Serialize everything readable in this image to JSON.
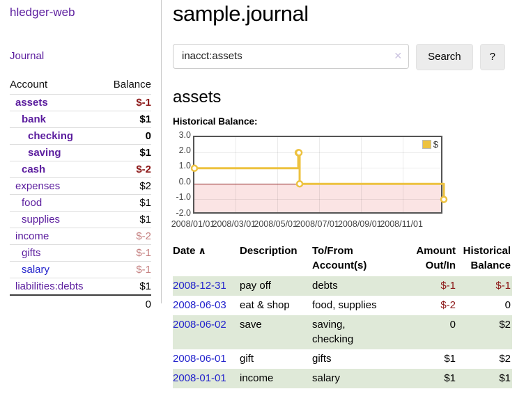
{
  "app": {
    "title": "hledger-web",
    "nav_journal_label": "Journal"
  },
  "sidebar": {
    "accounts_header": {
      "account": "Account",
      "balance": "Balance"
    },
    "accounts": [
      {
        "name": "assets",
        "indent": 1,
        "bold": true,
        "name_color": "purple",
        "balance": "$-1",
        "balance_color": "neg-strong",
        "balance_bold": true
      },
      {
        "name": "bank",
        "indent": 2,
        "bold": true,
        "name_color": "purple",
        "balance": "$1",
        "balance_color": "plain",
        "balance_bold": true
      },
      {
        "name": "checking",
        "indent": 3,
        "bold": true,
        "name_color": "purple",
        "balance": "0",
        "balance_color": "plain",
        "balance_bold": true
      },
      {
        "name": "saving",
        "indent": 3,
        "bold": true,
        "name_color": "purple",
        "balance": "$1",
        "balance_color": "plain",
        "balance_bold": true
      },
      {
        "name": "cash",
        "indent": 2,
        "bold": true,
        "name_color": "purple",
        "balance": "$-2",
        "balance_color": "neg-strong",
        "balance_bold": true
      },
      {
        "name": "expenses",
        "indent": 1,
        "bold": false,
        "name_color": "purple",
        "balance": "$2",
        "balance_color": "plain",
        "balance_bold": false
      },
      {
        "name": "food",
        "indent": 2,
        "bold": false,
        "name_color": "purple",
        "balance": "$1",
        "balance_color": "plain",
        "balance_bold": false
      },
      {
        "name": "supplies",
        "indent": 2,
        "bold": false,
        "name_color": "purple",
        "balance": "$1",
        "balance_color": "plain",
        "balance_bold": false
      },
      {
        "name": "income",
        "indent": 1,
        "bold": false,
        "name_color": "purple",
        "balance": "$-2",
        "balance_color": "neg-soft",
        "balance_bold": false
      },
      {
        "name": "gifts",
        "indent": 2,
        "bold": false,
        "name_color": "purple",
        "balance": "$-1",
        "balance_color": "neg-soft",
        "balance_bold": false
      },
      {
        "name": "salary",
        "indent": 2,
        "bold": false,
        "name_color": "blue",
        "balance": "$-1",
        "balance_color": "neg-soft",
        "balance_bold": false
      },
      {
        "name": "liabilities:debts",
        "indent": 1,
        "bold": false,
        "name_color": "purple",
        "balance": "$1",
        "balance_color": "plain",
        "balance_bold": false
      }
    ],
    "total": "0"
  },
  "main": {
    "title": "sample.journal",
    "search": {
      "value": "inacct:assets",
      "clear_icon": "✕",
      "button_label": "Search",
      "help_label": "?"
    },
    "account_heading": "assets",
    "chart_label": "Historical Balance:"
  },
  "chart_data": {
    "type": "line",
    "style": "step",
    "title": "Historical Balance of assets",
    "series": [
      {
        "name": "$",
        "color": "#edc240",
        "points": [
          [
            "2008-01-01",
            1
          ],
          [
            "2008-06-01",
            2
          ],
          [
            "2008-06-02",
            2
          ],
          [
            "2008-06-03",
            0
          ],
          [
            "2008-12-31",
            -1
          ]
        ]
      }
    ],
    "x_range": [
      "2008-01-01",
      "2008-12-31"
    ],
    "ylim": [
      -2,
      3
    ],
    "yticks": [
      "3.0",
      "2.0",
      "1.0",
      "0.0",
      "-1.0",
      "-2.0"
    ],
    "xticks": [
      {
        "label": "2008/01/01",
        "date": "2008-01-01"
      },
      {
        "label": "2008/03/01",
        "date": "2008-03-01"
      },
      {
        "label": "2008/05/01",
        "date": "2008-05-01"
      },
      {
        "label": "2008/07/01",
        "date": "2008-07-01"
      },
      {
        "label": "2008/09/01",
        "date": "2008-09-01"
      },
      {
        "label": "2008/11/01",
        "date": "2008-11-01"
      }
    ],
    "legend": {
      "position": "top-right",
      "label": "$"
    },
    "grid": true,
    "negative_region_shaded": true
  },
  "register": {
    "headers": {
      "date": "Date",
      "description": "Description",
      "accounts": "To/From Account(s)",
      "amount": "Amount Out/In",
      "balance": "Historical Balance"
    },
    "sort_icon": "∧",
    "rows": [
      {
        "date": "2008-12-31",
        "description": "pay off",
        "accounts": "debts",
        "amount": "$-1",
        "amount_negative": true,
        "balance": "$-1",
        "balance_negative": true,
        "highlight": true
      },
      {
        "date": "2008-06-03",
        "description": "eat & shop",
        "accounts": "food, supplies",
        "amount": "$-2",
        "amount_negative": true,
        "balance": "0",
        "balance_negative": false,
        "highlight": false
      },
      {
        "date": "2008-06-02",
        "description": "save",
        "accounts": "saving,\nchecking",
        "amount": "0",
        "amount_negative": false,
        "balance": "$2",
        "balance_negative": false,
        "highlight": true
      },
      {
        "date": "2008-06-01",
        "description": "gift",
        "accounts": "gifts",
        "amount": "$1",
        "amount_negative": false,
        "balance": "$2",
        "balance_negative": false,
        "highlight": false
      },
      {
        "date": "2008-01-01",
        "description": "income",
        "accounts": "salary",
        "amount": "$1",
        "amount_negative": false,
        "balance": "$1",
        "balance_negative": false,
        "highlight": true
      }
    ]
  },
  "colors": {
    "link_purple": "#5b1d9e",
    "link_blue": "#2323cc",
    "negative_strong": "#8b1515",
    "negative_soft": "#c47e7e",
    "row_stripe_green": "#dfe9d8",
    "chart_series_yellow": "#edc240",
    "chart_negative_region": "#fbe4e4",
    "chart_zero_line": "#8b1a1a",
    "chart_border": "#545454",
    "button_bg": "#ececec",
    "divider": "#c9c9c9",
    "clear_icon": "#cbc3e0"
  }
}
